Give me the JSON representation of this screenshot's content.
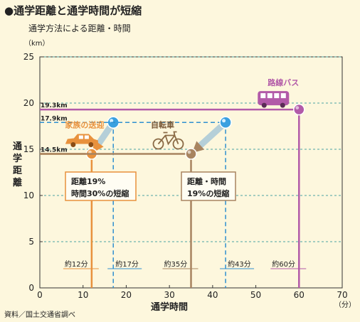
{
  "header": {
    "title": "●通学距離と通学時間が短縮",
    "subtitle": "通学方法による距離・時間"
  },
  "chart_data": {
    "type": "line",
    "xlabel": "通学時間",
    "ylabel": "通学距離",
    "xunit": "（分）",
    "yunit": "（km）",
    "xlim": [
      0,
      70
    ],
    "ylim": [
      0,
      25
    ],
    "xticks": [
      0,
      10,
      20,
      30,
      40,
      50,
      60,
      70
    ],
    "yticks": [
      0,
      5,
      10,
      15,
      20,
      25
    ],
    "grid": true,
    "distance_labels": [
      {
        "y": 19.3,
        "text": "19.3km"
      },
      {
        "y": 17.9,
        "text": "17.9km"
      },
      {
        "y": 14.5,
        "text": "14.5km"
      }
    ],
    "series": [
      {
        "name": "路線バス",
        "color": "#b25aa8",
        "x": 60,
        "y": 19.3,
        "time_label": "約60分"
      },
      {
        "name": "家族の送迎",
        "color": "#e8913c",
        "x": 12,
        "y": 14.5,
        "time_label": "約12分",
        "before": {
          "x": 17,
          "y": 17.9,
          "time_label": "約17分"
        }
      },
      {
        "name": "自転車",
        "color": "#a88460",
        "x": 35,
        "y": 14.5,
        "time_label": "約35分",
        "before": {
          "x": 43,
          "y": 17.9,
          "time_label": "約43分"
        }
      }
    ],
    "callouts": [
      {
        "lines": [
          "距離19%",
          "時間30%の短縮"
        ]
      },
      {
        "lines": [
          "距離・時間",
          "19%の短縮"
        ]
      }
    ]
  },
  "source_note": "資料／国土交通省調べ",
  "colors": {
    "background": "#fdf7dd",
    "plot_background": "#fdf7dd",
    "bus": "#b25aa8",
    "car": "#e8913c",
    "bike": "#a88460",
    "before_dash": "#2e8fd0",
    "grid": "#4aa3a3"
  }
}
